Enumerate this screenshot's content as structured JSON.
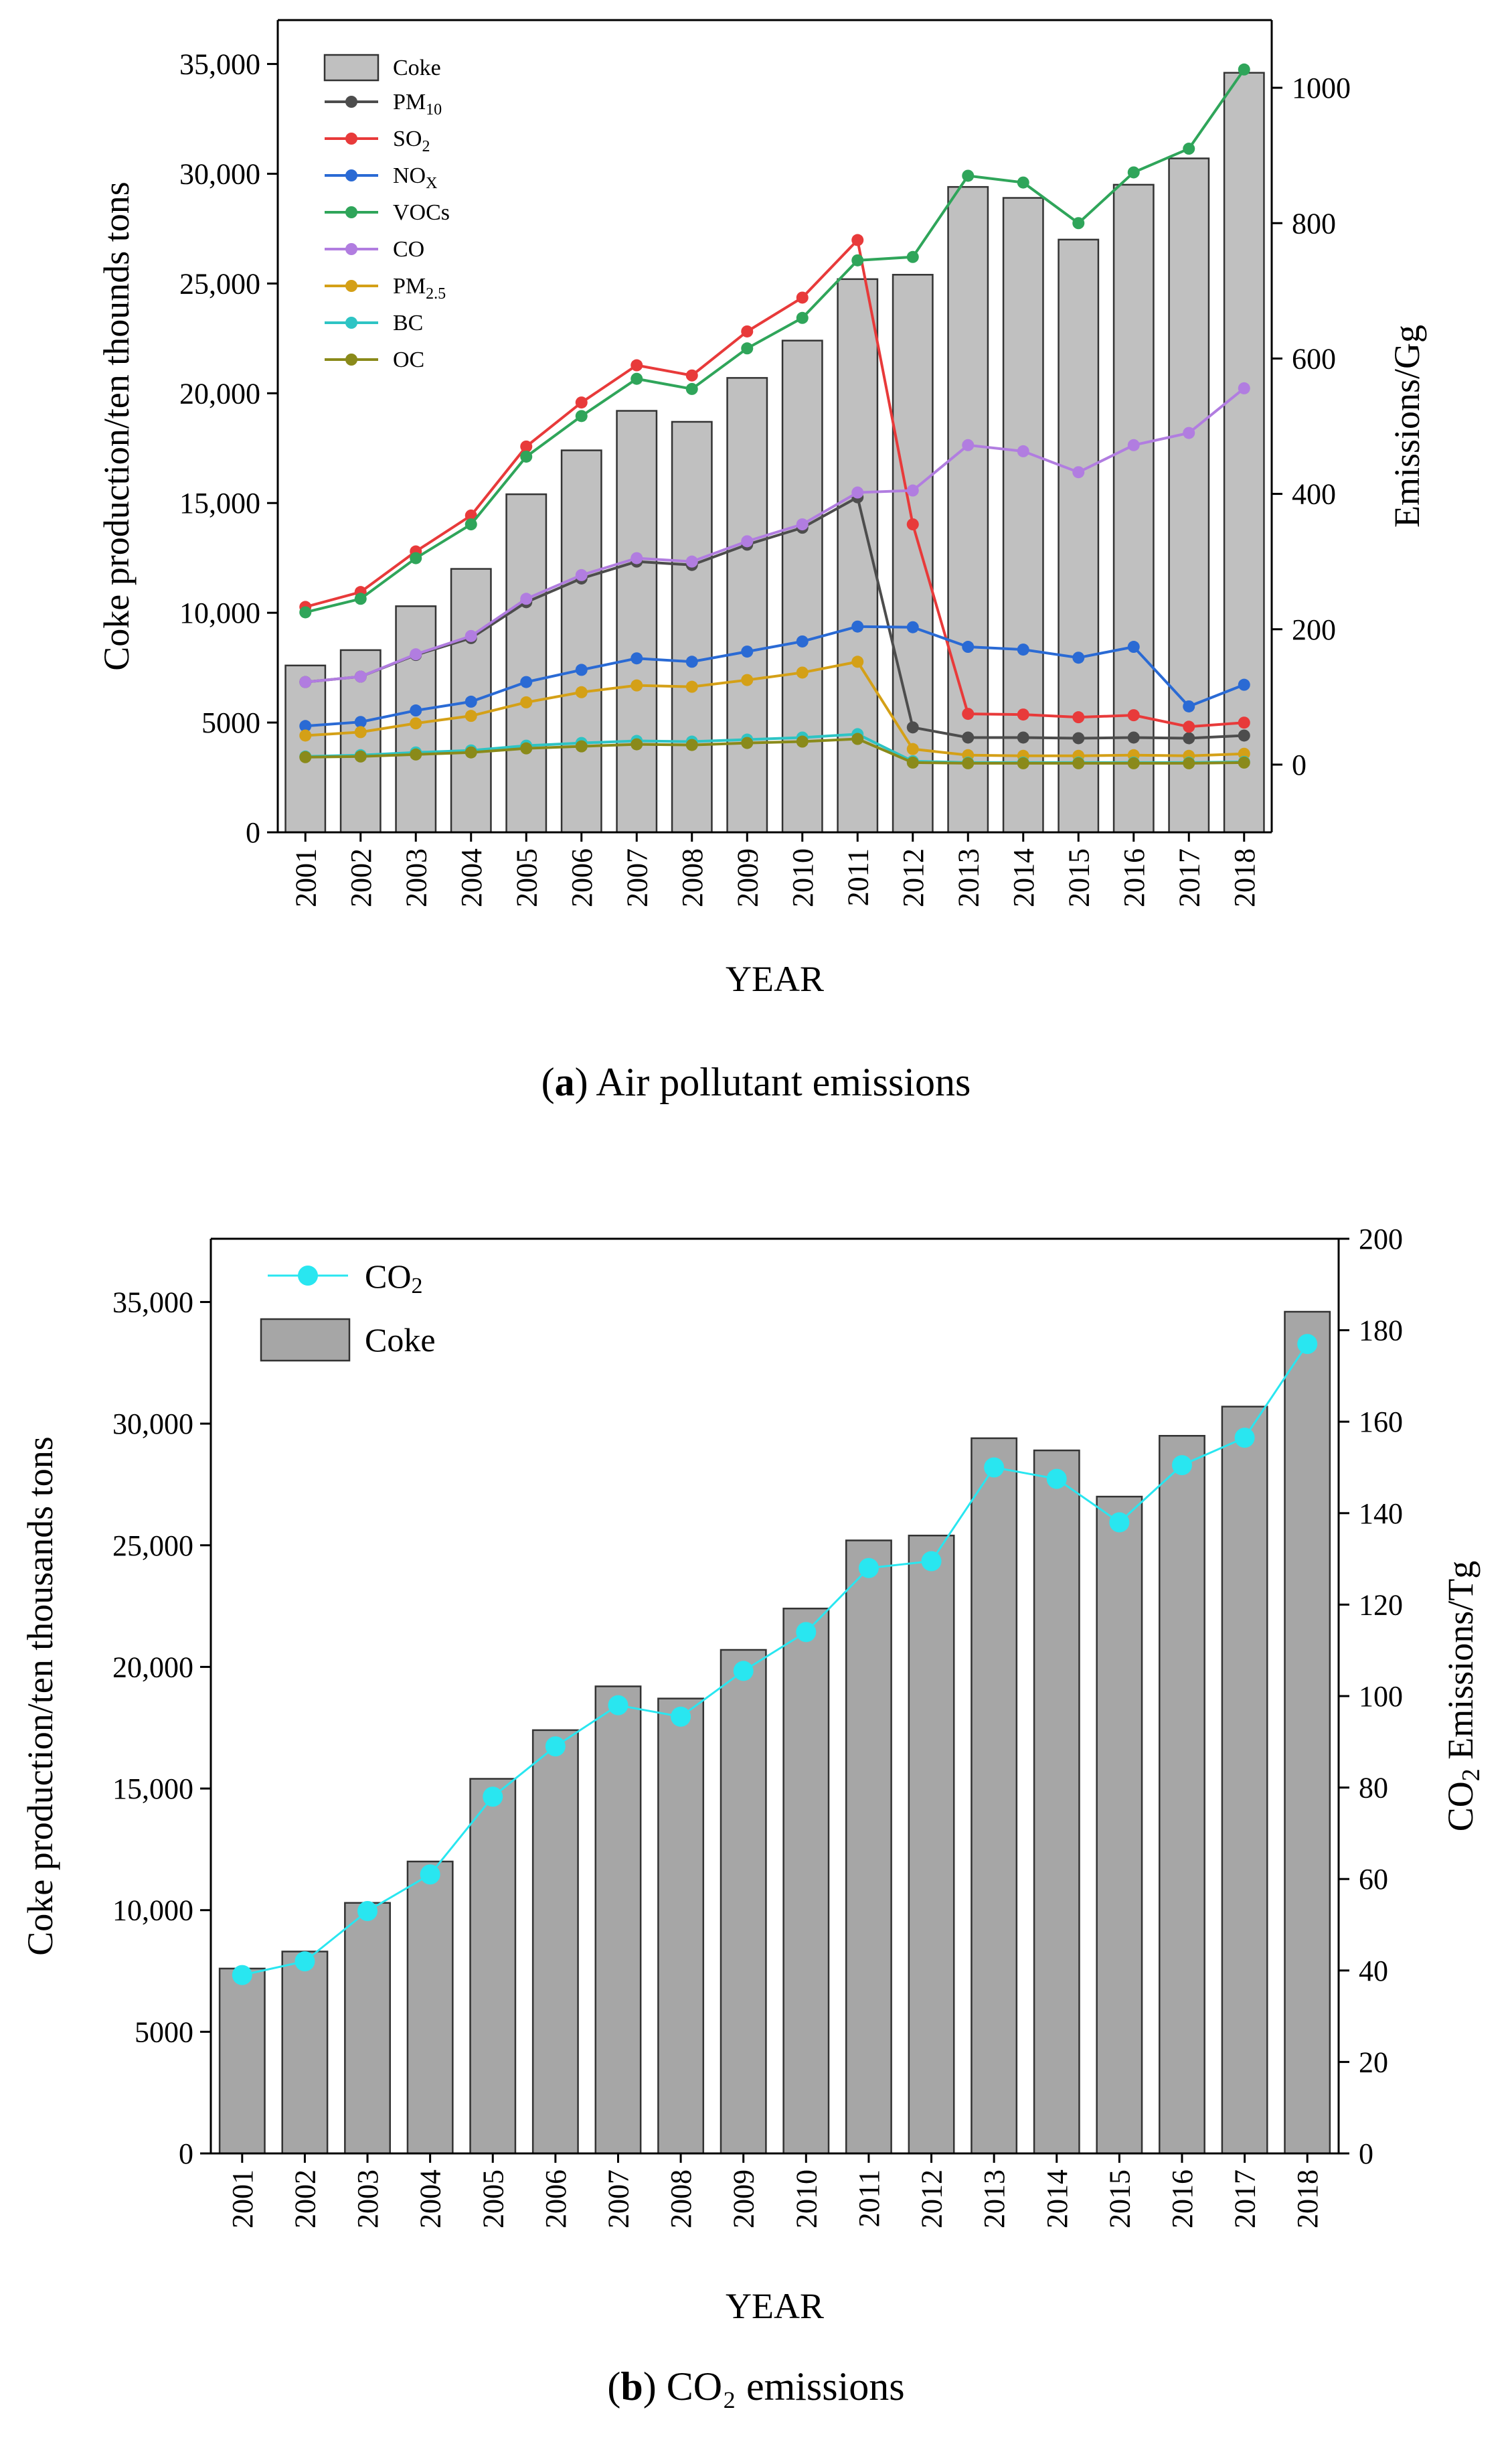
{
  "chart_data": [
    {
      "type": "bar+line",
      "caption_label": "a",
      "caption_text": "Air pollutant emissions",
      "xlabel": "YEAR",
      "ylabel": "Coke production/ten thounds tons",
      "y2label": "Emissions/Gg",
      "ylim": [
        0,
        37000
      ],
      "y2lim": [
        -100,
        1100
      ],
      "yticks": [
        "0",
        "5000",
        "10,000",
        "15,000",
        "20,000",
        "25,000",
        "30,000",
        "35,000"
      ],
      "ytick_values": [
        0,
        5000,
        10000,
        15000,
        20000,
        25000,
        30000,
        35000
      ],
      "y2ticks": [
        "0",
        "200",
        "400",
        "600",
        "800",
        "1000"
      ],
      "y2tick_values": [
        0,
        200,
        400,
        600,
        800,
        1000
      ],
      "categories": [
        "2001",
        "2002",
        "2003",
        "2004",
        "2005",
        "2006",
        "2007",
        "2008",
        "2009",
        "2010",
        "2011",
        "2012",
        "2013",
        "2014",
        "2015",
        "2016",
        "2017",
        "2018"
      ],
      "legend_position": "top-left",
      "bar_series": {
        "name": "Coke",
        "color": "#c0c0c0",
        "values": [
          7600,
          8300,
          10300,
          12000,
          15400,
          17400,
          19200,
          18700,
          20700,
          22400,
          25200,
          25400,
          29400,
          28900,
          27000,
          29500,
          30700,
          34600
        ]
      },
      "series": [
        {
          "name_main": "PM",
          "name_sub": "10",
          "color": "#4d4d4d",
          "values": [
            122,
            130,
            162,
            187,
            240,
            275,
            300,
            295,
            325,
            350,
            395,
            55,
            40,
            40,
            39,
            40,
            39,
            43
          ]
        },
        {
          "name_main": "SO",
          "name_sub": "2",
          "color": "#e83a3a",
          "values": [
            233,
            255,
            315,
            368,
            470,
            535,
            590,
            575,
            640,
            690,
            775,
            355,
            75,
            74,
            70,
            73,
            56,
            62
          ]
        },
        {
          "name_main": "NO",
          "name_sub": "X",
          "color": "#2a6ad4",
          "values": [
            57,
            63,
            80,
            93,
            122,
            140,
            157,
            152,
            167,
            182,
            204,
            203,
            174,
            170,
            158,
            174,
            86,
            118
          ]
        },
        {
          "name_main": "VOCs",
          "name_sub": "",
          "color": "#2fa55a",
          "values": [
            225,
            245,
            305,
            355,
            455,
            515,
            570,
            555,
            615,
            660,
            745,
            750,
            870,
            860,
            800,
            875,
            910,
            1027
          ]
        },
        {
          "name_main": "CO",
          "name_sub": "",
          "color": "#b17de0",
          "values": [
            122,
            130,
            163,
            190,
            245,
            280,
            305,
            300,
            330,
            355,
            402,
            405,
            472,
            463,
            432,
            472,
            490,
            556
          ]
        },
        {
          "name_main": "PM",
          "name_sub": "2.5",
          "color": "#d4a017",
          "values": [
            43,
            48,
            61,
            72,
            92,
            107,
            117,
            115,
            125,
            136,
            152,
            23,
            14,
            13,
            13,
            14,
            13,
            16
          ]
        },
        {
          "name_main": "BC",
          "name_sub": "",
          "color": "#2ec4c4",
          "values": [
            12,
            14,
            18,
            21,
            28,
            32,
            35,
            34,
            37,
            40,
            45,
            5,
            3,
            3,
            3,
            3,
            3,
            4
          ]
        },
        {
          "name_main": "OC",
          "name_sub": "",
          "color": "#8a8a1a",
          "values": [
            11,
            12,
            15,
            18,
            24,
            27,
            30,
            29,
            32,
            34,
            38,
            3,
            2,
            2,
            2,
            2,
            2,
            3
          ]
        }
      ]
    },
    {
      "type": "bar+line",
      "caption_label": "b",
      "caption_text": "CO₂ emissions",
      "xlabel": "YEAR",
      "ylabel": "Coke production/ten thousands tons",
      "y2label_main": "CO",
      "y2label_sub": "2",
      "y2label_rest": " Emissions/Tg",
      "ylim": [
        0,
        37600
      ],
      "y2lim": [
        0,
        200
      ],
      "yticks": [
        "0",
        "5000",
        "10,000",
        "15,000",
        "20,000",
        "25,000",
        "30,000",
        "35,000"
      ],
      "ytick_values": [
        0,
        5000,
        10000,
        15000,
        20000,
        25000,
        30000,
        35000
      ],
      "y2ticks": [
        "0",
        "20",
        "40",
        "60",
        "80",
        "100",
        "120",
        "140",
        "160",
        "180",
        "200"
      ],
      "y2tick_values": [
        0,
        20,
        40,
        60,
        80,
        100,
        120,
        140,
        160,
        180,
        200
      ],
      "categories": [
        "2001",
        "2002",
        "2003",
        "2004",
        "2005",
        "2006",
        "2007",
        "2008",
        "2009",
        "2010",
        "2011",
        "2012",
        "2013",
        "2014",
        "2015",
        "2016",
        "2017",
        "2018"
      ],
      "legend_position": "top-left",
      "bar_series": {
        "name": "Coke",
        "color": "#a6a6a6",
        "values": [
          7600,
          8300,
          10300,
          12000,
          15400,
          17400,
          19200,
          18700,
          20700,
          22400,
          25200,
          25400,
          29400,
          28900,
          27000,
          29500,
          30700,
          34600
        ]
      },
      "series": [
        {
          "name_main": "CO",
          "name_sub": "2",
          "color": "#29e6f0",
          "values": [
            39,
            42,
            53,
            61,
            78,
            89,
            98,
            95.5,
            105.5,
            114,
            128,
            129.5,
            150,
            147.5,
            138,
            150.5,
            156.5,
            177
          ]
        }
      ]
    }
  ]
}
